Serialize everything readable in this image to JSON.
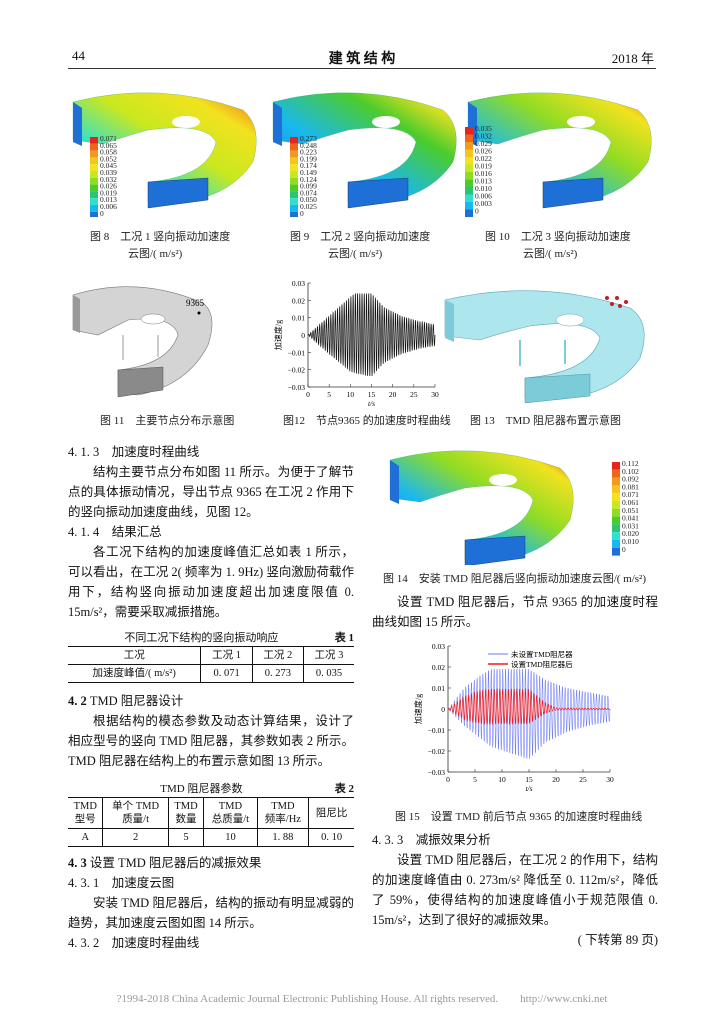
{
  "header": {
    "page_number": "44",
    "journal": "建 筑 结 构",
    "year": "2018 年"
  },
  "colors": {
    "contour_scale": [
      "#e8231b",
      "#f0641c",
      "#f29a1e",
      "#f5c51f",
      "#f2e21f",
      "#c9e81f",
      "#8fdc24",
      "#4ccc2c",
      "#2cc470",
      "#2ee0d0",
      "#19b8f0",
      "#1e6fd6"
    ],
    "deck_gray": "#c8c8c8",
    "deck_cyan": "#aee6ee",
    "tmd_marker": "#c0202a",
    "series_untreated": "#3a4cf0",
    "series_treated": "#ee1c24"
  },
  "figures_row1": [
    {
      "caption_line1": "图 8　工况 1 竖向振动加速度",
      "caption_line2": "云图/( m/s²)",
      "legend": [
        "0.071",
        "0.065",
        "0.058",
        "0.052",
        "0.045",
        "0.039",
        "0.032",
        "0.026",
        "0.019",
        "0.013",
        "0.006",
        "0"
      ]
    },
    {
      "caption_line1": "图 9　工况 2 竖向振动加速度",
      "caption_line2": "云图/( m/s²)",
      "legend": [
        "0.273",
        "0.248",
        "0.223",
        "0.199",
        "0.174",
        "0.149",
        "0.124",
        "0.099",
        "0.074",
        "0.050",
        "0.025",
        "0"
      ]
    },
    {
      "caption_line1": "图 10　工况 3 竖向振动加速度",
      "caption_line2": "云图/( m/s²)",
      "legend": [
        "0.035",
        "0.032",
        "0.029",
        "0.026",
        "0.022",
        "0.019",
        "0.016",
        "0.013",
        "0.010",
        "0.006",
        "0.003",
        "0"
      ]
    }
  ],
  "figures_row2": {
    "fig11": {
      "caption": "图 11　主要节点分布示意图",
      "node_label": "9365"
    },
    "fig12": {
      "caption": "图12　节点9365 的加速度时程曲线"
    },
    "fig13": {
      "caption": "图 13　TMD 阻尼器布置示意图"
    }
  },
  "fig14": {
    "caption": "图 14　安装 TMD 阻尼器后竖向振动加速度云图/( m/s²)",
    "legend": [
      "0.112",
      "0.102",
      "0.092",
      "0.081",
      "0.071",
      "0.061",
      "0.051",
      "0.041",
      "0.031",
      "0.020",
      "0.010",
      "0"
    ]
  },
  "fig15": {
    "caption": "图 15　设置 TMD 前后节点 9365 的加速度时程曲线"
  },
  "chart_data": [
    {
      "type": "line",
      "figure": "图12",
      "xlabel": "t/s",
      "ylabel": "加速度/g",
      "xlim": [
        0,
        30
      ],
      "ylim": [
        -0.03,
        0.03
      ],
      "xticks": [
        "0",
        "5",
        "10",
        "15",
        "20",
        "25",
        "30"
      ],
      "yticks": [
        "0.03",
        "0.02",
        "0.01",
        "0",
        "−0.01",
        "−0.02",
        "−0.03"
      ],
      "grid": false,
      "series": [
        {
          "color": "#111111",
          "oscillation_hz": 1.9,
          "envelope_t": [
            0,
            5,
            10,
            11,
            15,
            18,
            22,
            26,
            30
          ],
          "envelope_upper": [
            0,
            0.011,
            0.022,
            0.024,
            0.024,
            0.016,
            0.011,
            0.008,
            0.006
          ],
          "envelope_lower": [
            0,
            -0.011,
            -0.021,
            -0.022,
            -0.024,
            -0.016,
            -0.011,
            -0.008,
            -0.006
          ]
        }
      ]
    },
    {
      "type": "line",
      "figure": "图15",
      "xlabel": "t/s",
      "ylabel": "加速度/g",
      "xlim": [
        0,
        30
      ],
      "ylim": [
        -0.03,
        0.03
      ],
      "xticks": [
        "0",
        "5",
        "10",
        "15",
        "20",
        "25",
        "30"
      ],
      "yticks": [
        "0.03",
        "0.02",
        "0.01",
        "0",
        "−0.01",
        "−0.02",
        "−0.03"
      ],
      "grid": false,
      "legend_position": "top",
      "series": [
        {
          "name": "未设置TMD阻尼器",
          "color": "#3a4cf0",
          "oscillation_hz": 1.9,
          "envelope_t": [
            0,
            3,
            6,
            8,
            15,
            18,
            22,
            26,
            30
          ],
          "envelope_upper": [
            0,
            0.01,
            0.016,
            0.019,
            0.019,
            0.014,
            0.01,
            0.008,
            0.006
          ],
          "envelope_lower": [
            0,
            -0.008,
            -0.014,
            -0.018,
            -0.024,
            -0.016,
            -0.011,
            -0.008,
            -0.006
          ]
        },
        {
          "name": "设置TMD阻尼器后",
          "color": "#ee1c24",
          "oscillation_hz": 1.9,
          "envelope_t": [
            0,
            3,
            6,
            8,
            15,
            18,
            20,
            30
          ],
          "envelope_upper": [
            0,
            0.006,
            0.009,
            0.0095,
            0.0095,
            0.003,
            0.0005,
            0.0003
          ],
          "envelope_lower": [
            0,
            -0.005,
            -0.007,
            -0.007,
            -0.007,
            -0.002,
            -0.0005,
            -0.0003
          ]
        }
      ]
    }
  ],
  "left": {
    "s413": "4. 1. 3　加速度时程曲线",
    "p1": "结构主要节点分布如图 11 所示。为便于了解节点的具体振动情况，导出节点 9365 在工况 2 作用下的竖向振动加速度曲线，见图 12。",
    "s414": "4. 1. 4　结果汇总",
    "p2": "各工况下结构的加速度峰值汇总如表 1 所示，可以看出，在工况 2( 频率为 1. 9Hz) 竖向激励荷载作用下，结构竖向振动加速度超出加速度限值 0. 15m/s²，需要采取减振措施。",
    "table1": {
      "title": "不同工况下结构的竖向振动响应",
      "label": "表 1",
      "headers": [
        "工况",
        "工况 1",
        "工况 2",
        "工况 3"
      ],
      "row": [
        "加速度峰值/( m/s²)",
        "0. 071",
        "0. 273",
        "0. 035"
      ]
    },
    "s42_num": "4. 2",
    "s42_title": "TMD 阻尼器设计",
    "p3": "根据结构的模态参数及动态计算结果，设计了相应型号的竖向 TMD 阻尼器，其参数如表 2 所示。TMD 阻尼器在结构上的布置示意如图 13 所示。",
    "table2": {
      "title": "TMD 阻尼器参数",
      "label": "表 2",
      "headers": [
        [
          "TMD",
          "型号"
        ],
        [
          "单个 TMD",
          "质量/t"
        ],
        [
          "TMD",
          "数量"
        ],
        [
          "TMD",
          "总质量/t"
        ],
        [
          "TMD",
          "频率/Hz"
        ],
        [
          "阻尼比",
          ""
        ]
      ],
      "row": [
        "A",
        "2",
        "5",
        "10",
        "1. 88",
        "0. 10"
      ]
    },
    "s43_num": "4. 3",
    "s43_title": "设置 TMD 阻尼器后的减振效果",
    "s431": "4. 3. 1　加速度云图",
    "p4": "安装 TMD 阻尼器后，结构的振动有明显减弱的趋势，其加速度云图如图 14 所示。",
    "s432": "4. 3. 2　加速度时程曲线"
  },
  "right": {
    "p5": "设置 TMD 阻尼器后，节点 9365 的加速度时程曲线如图 15 所示。",
    "s433": "4. 3. 3　减振效果分析",
    "p6": "设置 TMD 阻尼器后，在工况 2 的作用下，结构的加速度峰值由 0. 273m/s² 降低至 0. 112m/s²，降低了 59%，使得结构的加速度峰值小于规范限值 0. 15m/s²，达到了很好的减振效果。",
    "continued": "( 下转第 89 页)"
  },
  "footer": "?1994-2018 China Academic Journal Electronic Publishing House. All rights reserved.　　http://www.cnki.net"
}
